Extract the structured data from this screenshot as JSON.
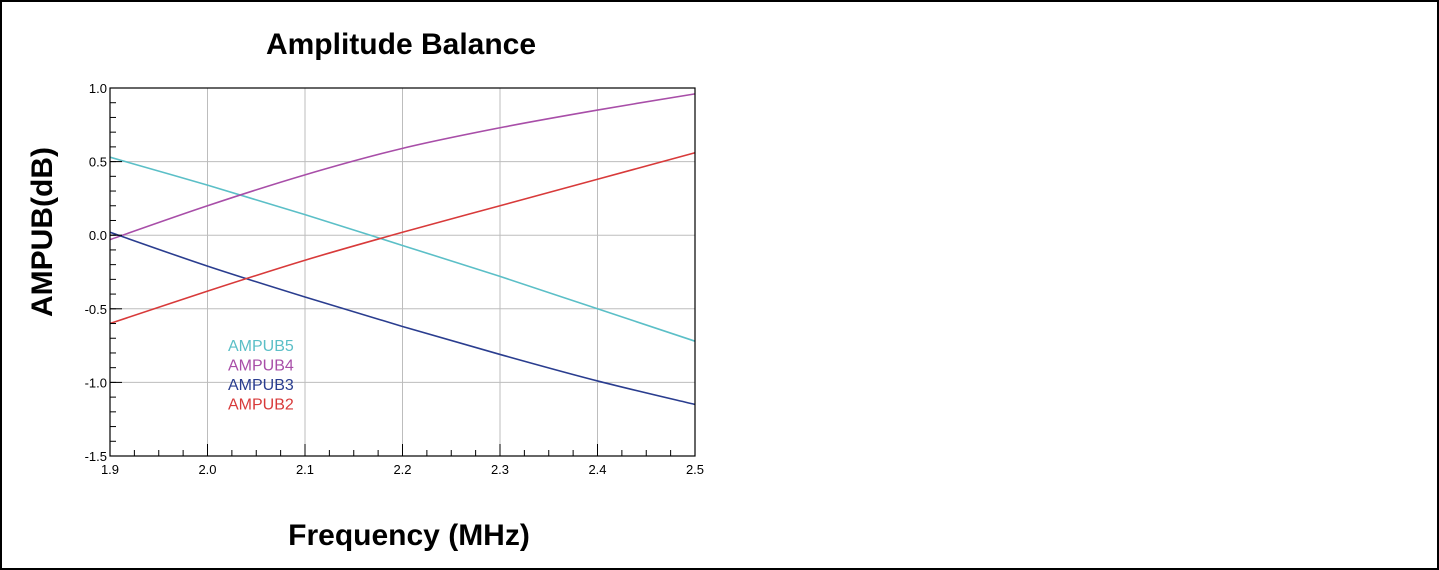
{
  "chart_data": {
    "type": "line",
    "title": "Amplitude Balance",
    "xlabel": "Frequency (MHz)",
    "ylabel": "AMPUB(dB)",
    "xlim": [
      1.9,
      2.5
    ],
    "ylim": [
      -1.5,
      1.0
    ],
    "x_ticks": [
      "1.9",
      "2.0",
      "2.1",
      "2.2",
      "2.3",
      "2.4",
      "2.5"
    ],
    "y_ticks": [
      "1.0",
      "0.5",
      "0.0",
      "-0.5",
      "-1.0",
      "-1.5"
    ],
    "grid": true,
    "legend_position": "lower-left",
    "series": [
      {
        "name": "AMPUB5",
        "color": "#5bbfc7",
        "x": [
          1.9,
          2.0,
          2.1,
          2.2,
          2.3,
          2.4,
          2.5
        ],
        "values": [
          0.53,
          0.34,
          0.14,
          -0.07,
          -0.28,
          -0.5,
          -0.72
        ]
      },
      {
        "name": "AMPUB4",
        "color": "#a84ea8",
        "x": [
          1.9,
          2.0,
          2.1,
          2.2,
          2.3,
          2.4,
          2.5
        ],
        "values": [
          -0.03,
          0.2,
          0.41,
          0.59,
          0.73,
          0.85,
          0.96
        ]
      },
      {
        "name": "AMPUB3",
        "color": "#2a3d8f",
        "x": [
          1.9,
          2.0,
          2.1,
          2.2,
          2.3,
          2.4,
          2.5
        ],
        "values": [
          0.02,
          -0.21,
          -0.42,
          -0.62,
          -0.81,
          -0.99,
          -1.15
        ]
      },
      {
        "name": "AMPUB2",
        "color": "#d83a3a",
        "x": [
          1.9,
          2.0,
          2.1,
          2.2,
          2.3,
          2.4,
          2.5
        ],
        "values": [
          -0.6,
          -0.38,
          -0.17,
          0.02,
          0.2,
          0.38,
          0.56
        ]
      }
    ]
  }
}
